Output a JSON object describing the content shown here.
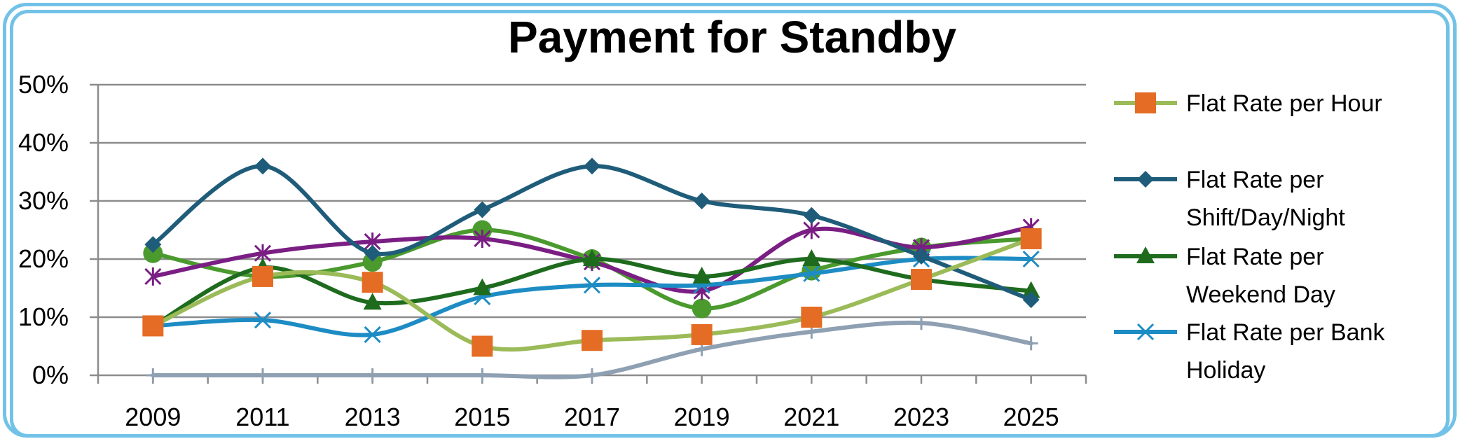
{
  "chart_data": {
    "type": "line",
    "title": "Payment for Standby",
    "xlabel": "",
    "ylabel": "",
    "categories": [
      "2009",
      "2011",
      "2013",
      "2015",
      "2017",
      "2019",
      "2021",
      "2023",
      "2025"
    ],
    "y_tick_labels": [
      "0%",
      "10%",
      "20%",
      "30%",
      "40%",
      "50%"
    ],
    "ylim": [
      0,
      50
    ],
    "grid": true,
    "legend_position": "right",
    "series": [
      {
        "name": "Flat Rate per Hour",
        "line_color": "#9BBB59",
        "marker_color": "#E46C24",
        "marker": "square",
        "legend": true,
        "values": [
          8.5,
          17,
          16,
          5,
          6,
          7,
          10,
          16.5,
          23.5
        ]
      },
      {
        "name": "Flat Rate per Shift/Day/Night",
        "line_color": "#1F5C7A",
        "marker_color": "#1F5C7A",
        "marker": "diamond",
        "legend": true,
        "values": [
          22.5,
          36,
          21,
          28.5,
          36,
          30,
          27.5,
          20.5,
          13
        ]
      },
      {
        "name": "Flat Rate per Weekend Day",
        "line_color": "#1E6B1E",
        "marker_color": "#1E6B1E",
        "marker": "triangle",
        "legend": true,
        "values": [
          8.5,
          18.5,
          12.5,
          15,
          20,
          17,
          20,
          16.5,
          14.5
        ]
      },
      {
        "name": "Flat Rate per Bank Holiday",
        "line_color": "#1E8CC4",
        "marker_color": "#1E8CC4",
        "marker": "x",
        "legend": true,
        "values": [
          8.5,
          9.5,
          7,
          13.5,
          15.5,
          15.5,
          17.5,
          20,
          20
        ]
      },
      {
        "line_color": "#7A1E84",
        "marker_color": "#7A1E84",
        "marker": "star",
        "legend": false,
        "values": [
          17,
          21,
          23,
          23.5,
          19.5,
          14.5,
          25,
          22,
          25.5
        ]
      },
      {
        "line_color": "#4A9A2E",
        "marker_color": "#4A9A2E",
        "marker": "circle",
        "legend": false,
        "values": [
          21,
          17,
          19.5,
          25,
          20,
          11.5,
          18,
          22,
          23.5
        ]
      },
      {
        "line_color": "#8EA0B2",
        "marker_color": "#8EA0B2",
        "marker": "plus",
        "legend": false,
        "values": [
          0,
          0,
          0,
          0,
          0,
          4.5,
          7.5,
          9,
          5.5
        ]
      }
    ]
  }
}
